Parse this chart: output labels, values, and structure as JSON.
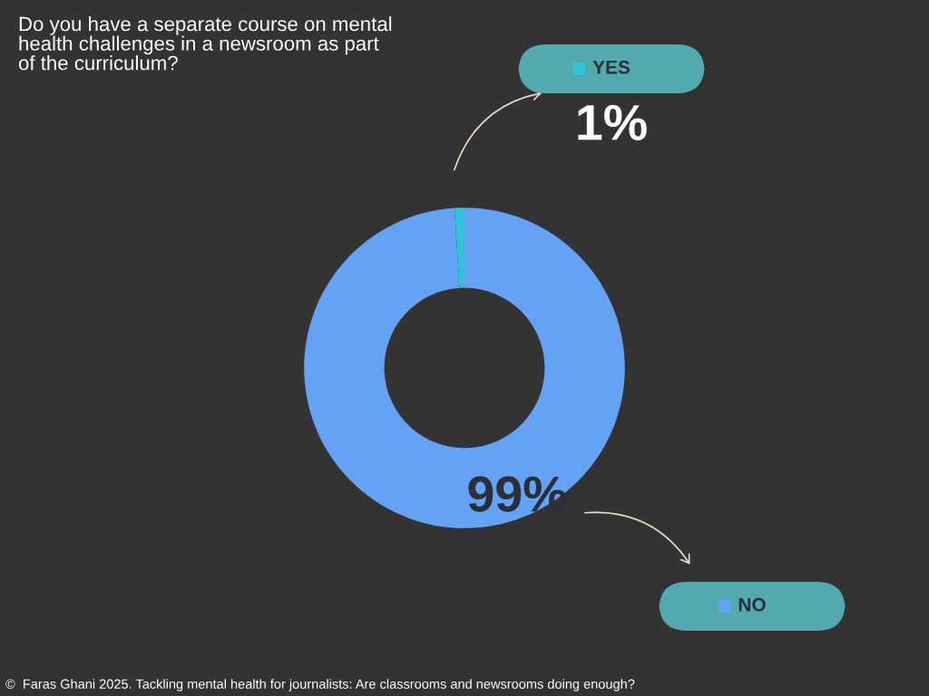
{
  "chart_data": {
    "type": "donut",
    "title": "Do you have a separate course on mental health challenges in a newsroom as part of the curriculum?",
    "categories": [
      "YES",
      "NO"
    ],
    "values": [
      1,
      99
    ],
    "colors": [
      "#2ec4d6",
      "#64a2f6"
    ],
    "value_labels": [
      "1%",
      "99%"
    ],
    "legend": "right",
    "annotations": [
      "©  Faras Ghani 2025. Tackling mental health for journalists: Are classrooms and newsrooms doing enough?"
    ]
  }
}
